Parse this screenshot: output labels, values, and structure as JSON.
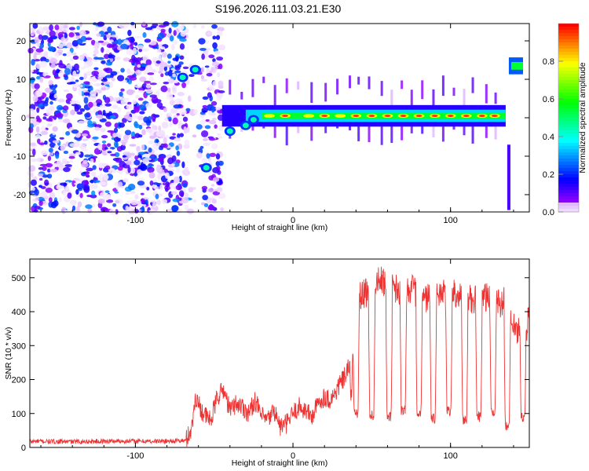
{
  "title": "S196.2026.111.03.21.E30",
  "chart_data": [
    {
      "type": "heatmap",
      "name": "spectrogram",
      "xlabel": "Height of straight line (km)",
      "ylabel": "Frequency (Hz)",
      "xlim": [
        -167,
        150
      ],
      "ylim": [
        -24.5,
        24.5
      ],
      "xticks": [
        -100,
        0,
        100
      ],
      "xtick_labels": [
        "-100",
        "0",
        "100"
      ],
      "yticks": [
        -20,
        -10,
        0,
        10,
        20
      ],
      "ytick_labels": [
        "-20",
        "-10",
        "0",
        "10",
        "20"
      ],
      "colorbar": {
        "label": "Normalized spectral amplitude",
        "range": [
          0,
          1
        ],
        "ticks": [
          0.0,
          0.2,
          0.4,
          0.6,
          0.8
        ],
        "tick_labels": [
          "0.0",
          "0.2",
          "0.4",
          "0.6",
          "0.8"
        ]
      },
      "features": {
        "noise_region_km": [
          -167,
          -45
        ],
        "noise_gap_km": [
          -67,
          -58
        ],
        "carrier_freq_hz": 0.5,
        "carrier_start_km": -45,
        "carrier_end_km": 135,
        "carrier_peak_positions_km": [
          -15,
          -5,
          10,
          20,
          30,
          40,
          50,
          60,
          70,
          80,
          90,
          100,
          110,
          120,
          128
        ],
        "offset_tone_hz": 13.5,
        "offset_tone_km": [
          137,
          146
        ],
        "early_blobs": [
          {
            "x_km": -70,
            "f_hz": 10.5
          },
          {
            "x_km": -62,
            "f_hz": 12.5
          },
          {
            "x_km": -55,
            "f_hz": -13.0
          },
          {
            "x_km": -40,
            "f_hz": -3.5
          },
          {
            "x_km": -30,
            "f_hz": -2.0
          },
          {
            "x_km": -25,
            "f_hz": -0.5
          }
        ]
      }
    },
    {
      "type": "line",
      "name": "snr",
      "xlabel": "Height of straight line (km)",
      "ylabel": "SNR (10 * v/v)",
      "xlim": [
        -167,
        150
      ],
      "ylim": [
        0,
        555
      ],
      "xticks": [
        -100,
        0,
        100
      ],
      "xtick_labels": [
        "-100",
        "0",
        "100"
      ],
      "yticks": [
        0,
        100,
        200,
        300,
        400,
        500
      ],
      "ytick_labels": [
        "0",
        "100",
        "200",
        "300",
        "400",
        "500"
      ],
      "line_color": "#ee3333",
      "series": [
        {
          "name": "SNR",
          "x": [
            -167,
            -140,
            -110,
            -90,
            -68,
            -64,
            -62,
            -58,
            -55,
            -52,
            -48,
            -44,
            -40,
            -36,
            -32,
            -28,
            -24,
            -20,
            -16,
            -12,
            -8,
            -4,
            0,
            4,
            8,
            12,
            16,
            20,
            24,
            28,
            30,
            32,
            34,
            36,
            37,
            39,
            40,
            45,
            50,
            55,
            60,
            65,
            70,
            75,
            80,
            85,
            90,
            95,
            100,
            105,
            110,
            115,
            120,
            125,
            130,
            135,
            138,
            140,
            142,
            145,
            148,
            150
          ],
          "y": [
            18,
            17,
            19,
            18,
            20,
            60,
            150,
            110,
            90,
            80,
            150,
            170,
            110,
            130,
            120,
            100,
            140,
            90,
            80,
            110,
            60,
            70,
            100,
            120,
            110,
            90,
            130,
            150,
            140,
            170,
            190,
            200,
            220,
            240,
            130,
            450,
            440,
            450,
            470,
            490,
            480,
            470,
            460,
            470,
            450,
            440,
            460,
            450,
            470,
            450,
            440,
            430,
            450,
            440,
            420,
            430,
            400,
            380,
            330,
            380,
            340,
            430
          ],
          "dropouts": [
            {
              "x_km": 40,
              "depth": 100
            },
            {
              "x_km": 50,
              "depth": 95
            },
            {
              "x_km": 61,
              "depth": 90
            },
            {
              "x_km": 70,
              "depth": 110
            },
            {
              "x_km": 80,
              "depth": 95
            },
            {
              "x_km": 89,
              "depth": 85
            },
            {
              "x_km": 99,
              "depth": 105
            },
            {
              "x_km": 109,
              "depth": 80
            },
            {
              "x_km": 118,
              "depth": 90
            },
            {
              "x_km": 127,
              "depth": 105
            },
            {
              "x_km": 136,
              "depth": 65
            },
            {
              "x_km": 146,
              "depth": 90
            }
          ]
        }
      ]
    }
  ]
}
